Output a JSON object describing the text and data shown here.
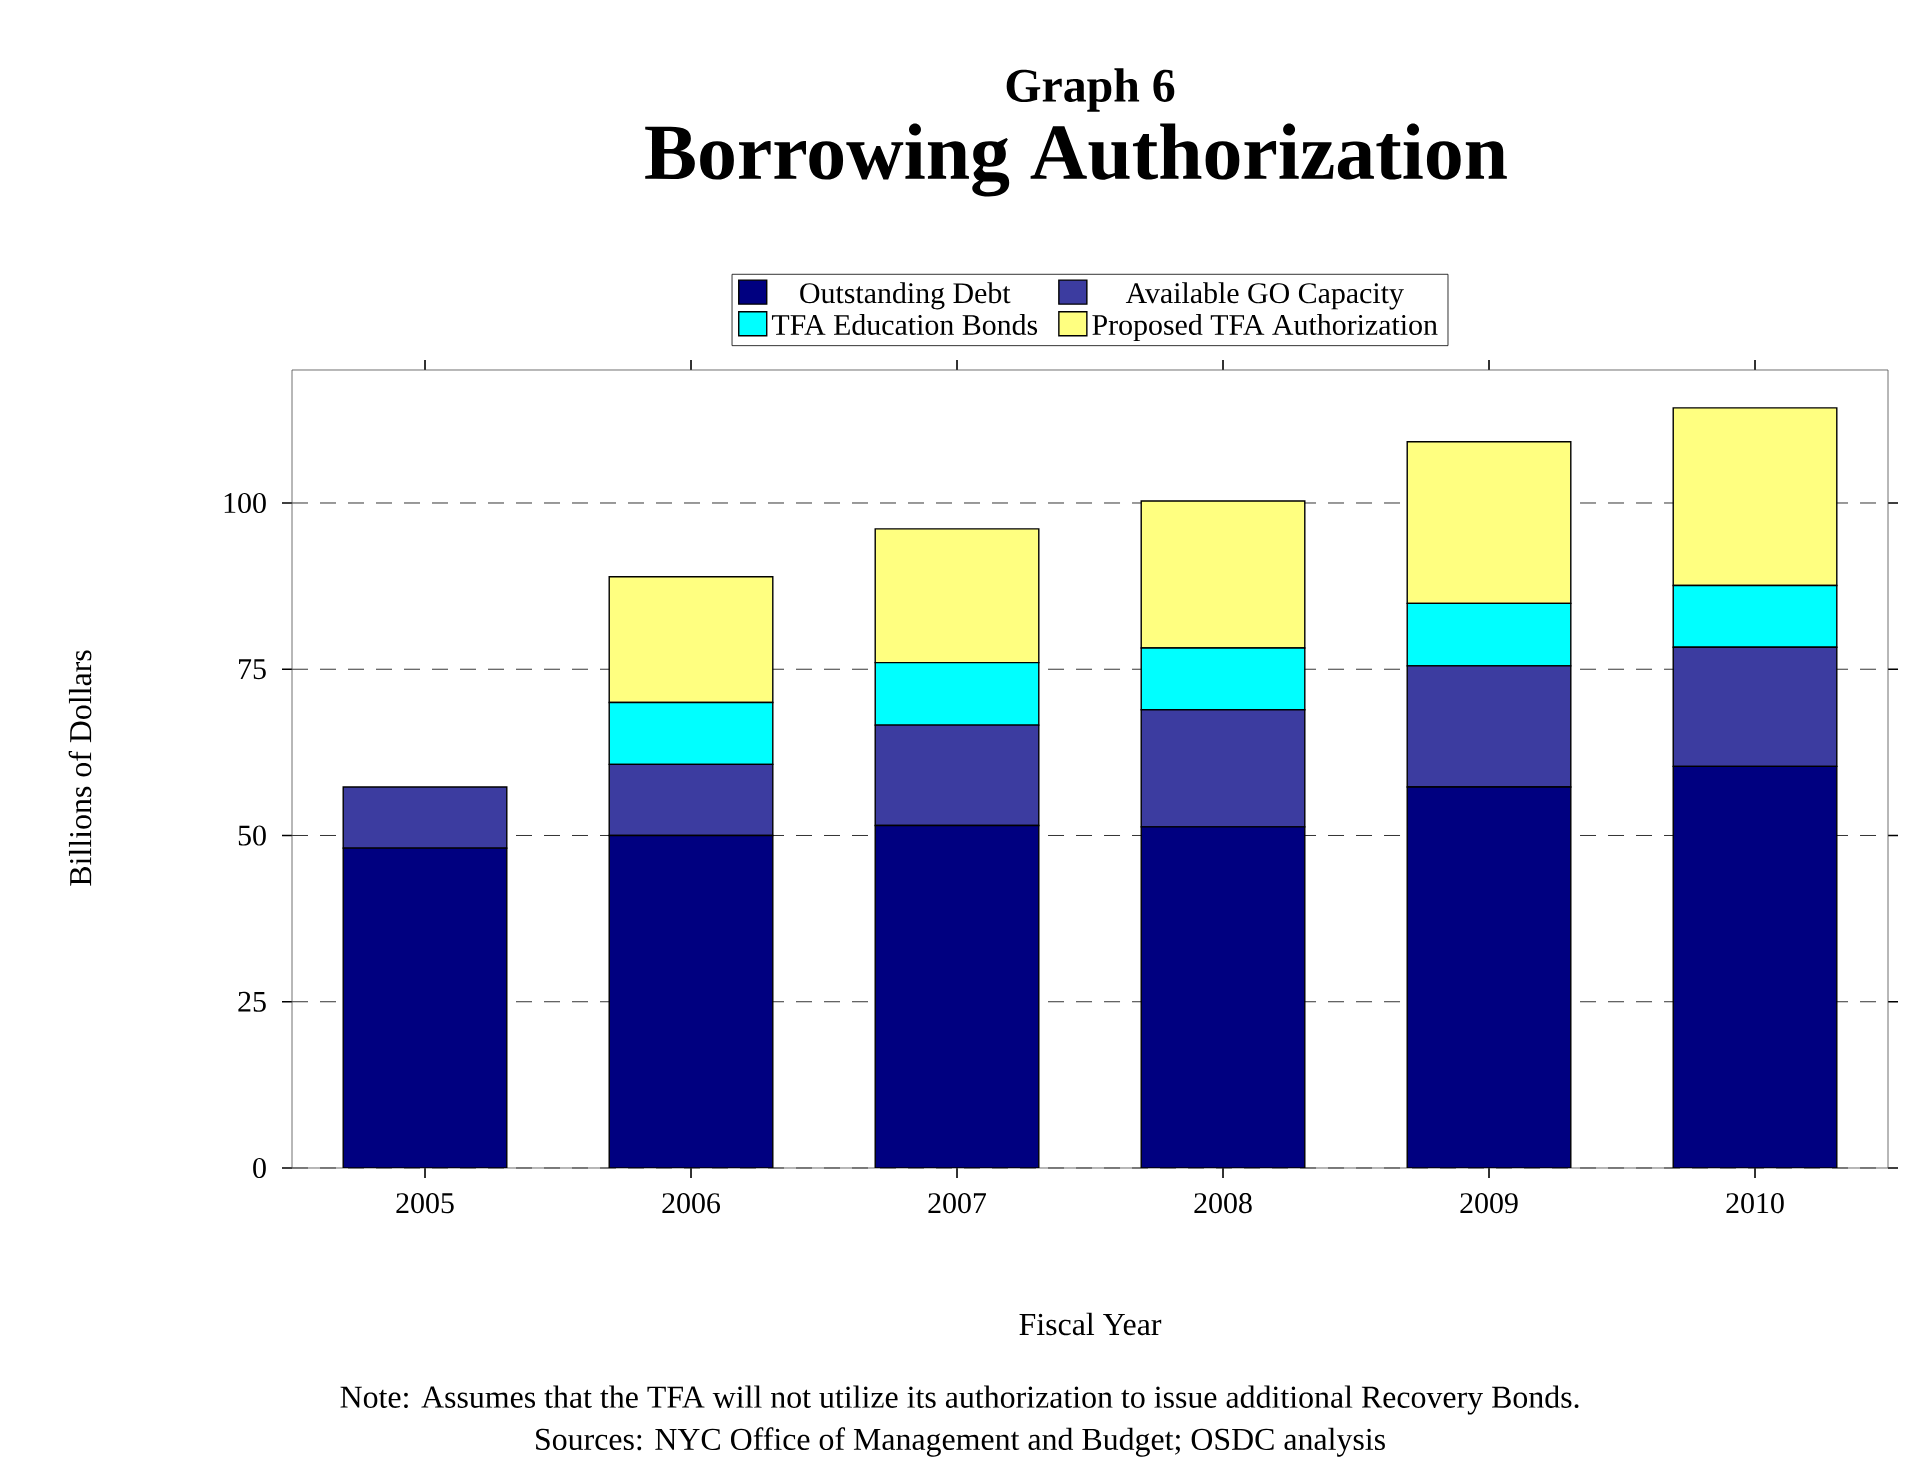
{
  "chart_data": {
    "type": "bar",
    "stacked": true,
    "title": "Borrowing Authorization",
    "subtitle": "Graph 6",
    "xlabel": "Fiscal Year",
    "ylabel": "Billions of Dollars",
    "categories": [
      "2005",
      "2006",
      "2007",
      "2008",
      "2009",
      "2010"
    ],
    "series": [
      {
        "name": "Outstanding Debt",
        "color": "#000080",
        "values": [
          48.1,
          50.0,
          51.5,
          51.3,
          57.3,
          60.4
        ]
      },
      {
        "name": "Available GO Capacity",
        "color": "#3c3ca0",
        "values": [
          9.2,
          10.7,
          15.1,
          17.6,
          18.2,
          17.9
        ]
      },
      {
        "name": "TFA Education Bonds",
        "color": "#00ffff",
        "values": [
          0,
          9.3,
          9.4,
          9.3,
          9.4,
          9.3
        ]
      },
      {
        "name": "Proposed TFA Authorization",
        "color": "#ffff80",
        "values": [
          0,
          18.9,
          20.1,
          22.1,
          24.3,
          26.7
        ]
      }
    ],
    "ylim": [
      0,
      120
    ],
    "yticks": [
      0,
      25,
      50,
      75,
      100
    ],
    "grid": "y",
    "legend": "top",
    "annotations": [
      "Note: Assumes that the TFA will not utilize its authorization to issue additional Recovery Bonds.",
      "Sources: NYC Office of Management and Budget; OSDC analysis"
    ]
  }
}
